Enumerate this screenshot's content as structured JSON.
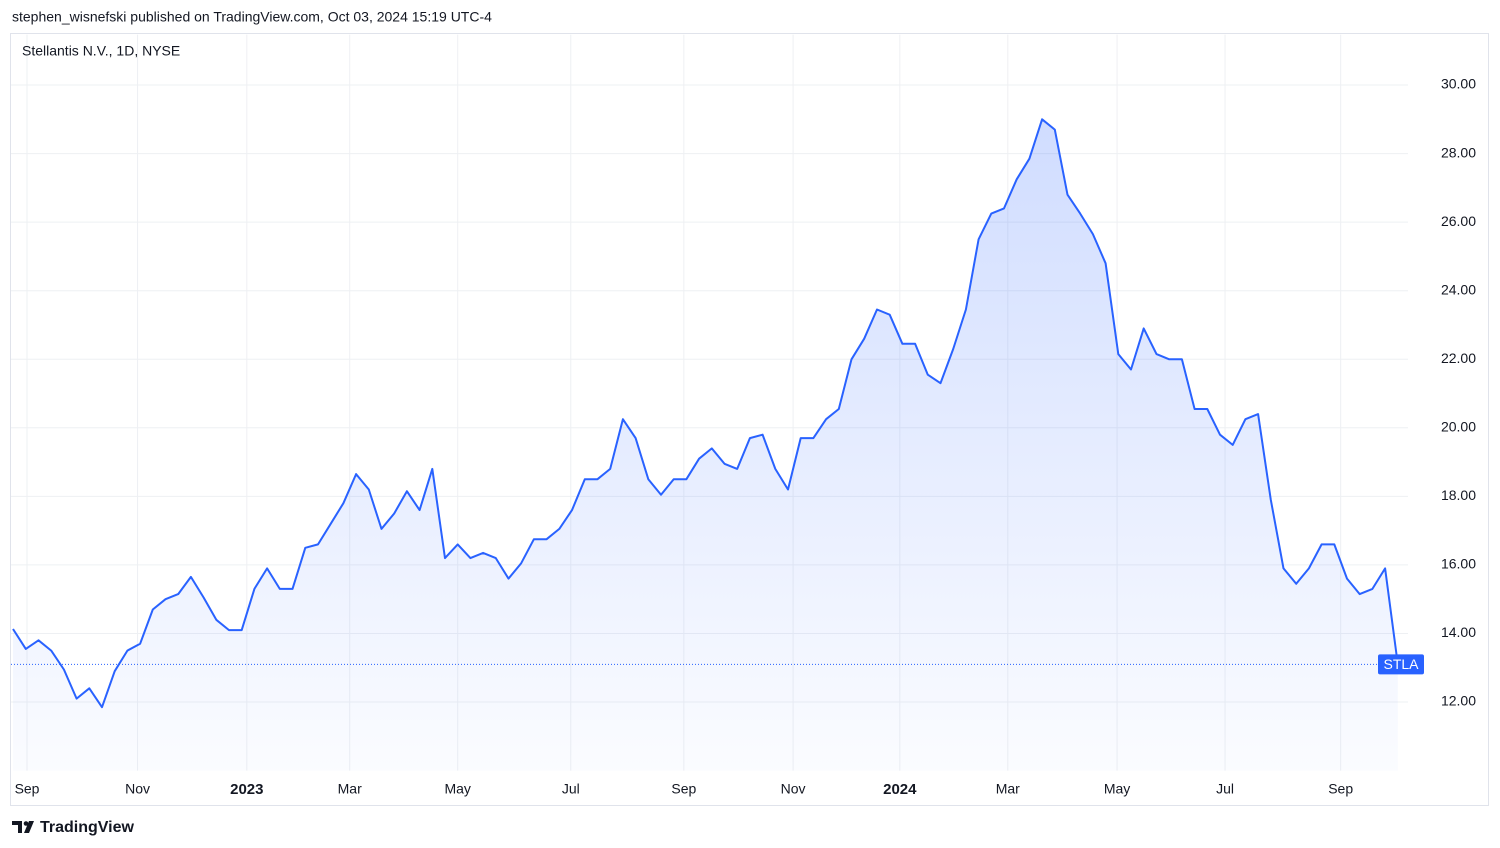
{
  "header": {
    "published": "stephen_wisnefski published on TradingView.com, Oct 03, 2024 15:19 UTC-4",
    "brand": "TradingView"
  },
  "chart_data": {
    "type": "area",
    "title": "Stellantis N.V., 1D, NYSE",
    "series": [
      {
        "name": "STLA",
        "color": "#2962ff",
        "values": [
          14.13,
          13.55,
          13.8,
          13.5,
          12.95,
          12.1,
          12.4,
          11.85,
          12.9,
          13.5,
          13.7,
          14.7,
          15.0,
          15.15,
          15.65,
          15.05,
          14.4,
          14.1,
          14.1,
          15.3,
          15.9,
          15.3,
          15.3,
          16.5,
          16.6,
          17.2,
          17.8,
          18.65,
          18.2,
          17.05,
          17.5,
          18.15,
          17.6,
          18.8,
          16.2,
          16.6,
          16.2,
          16.35,
          16.2,
          15.6,
          16.05,
          16.75,
          16.75,
          17.05,
          17.6,
          18.5,
          18.5,
          18.8,
          20.25,
          19.7,
          18.5,
          18.05,
          18.5,
          18.5,
          19.1,
          19.4,
          18.95,
          18.8,
          19.7,
          19.8,
          18.8,
          18.2,
          19.7,
          19.7,
          20.25,
          20.55,
          22.0,
          22.6,
          23.45,
          23.3,
          22.45,
          22.45,
          21.55,
          21.3,
          22.3,
          23.45,
          25.5,
          26.25,
          26.4,
          27.25,
          27.85,
          29.0,
          28.7,
          26.8,
          26.25,
          25.65,
          24.8,
          22.15,
          21.7,
          22.9,
          22.15,
          22.0,
          22.0,
          20.55,
          20.55,
          19.8,
          19.5,
          20.25,
          20.4,
          17.9,
          15.9,
          15.45,
          15.9,
          16.6,
          16.6,
          15.6,
          15.15,
          15.3,
          15.9,
          13.1
        ]
      }
    ],
    "xlim": [
      -0.24,
      109.8
    ],
    "xticks": [
      {
        "value": 1.1,
        "label": "Sep"
      },
      {
        "value": 9.8,
        "label": "Nov"
      },
      {
        "value": 18.4,
        "label": "2023"
      },
      {
        "value": 26.5,
        "label": "Mar"
      },
      {
        "value": 35.0,
        "label": "May"
      },
      {
        "value": 43.9,
        "label": "Jul"
      },
      {
        "value": 52.8,
        "label": "Sep"
      },
      {
        "value": 61.4,
        "label": "Nov"
      },
      {
        "value": 69.8,
        "label": "2024"
      },
      {
        "value": 78.3,
        "label": "Mar"
      },
      {
        "value": 86.9,
        "label": "May"
      },
      {
        "value": 95.4,
        "label": "Jul"
      },
      {
        "value": 104.5,
        "label": "Sep"
      }
    ],
    "ylim": [
      10,
      31.5
    ],
    "yticks": [
      {
        "value": 12,
        "label": "12.00"
      },
      {
        "value": 14,
        "label": "14.00"
      },
      {
        "value": 16,
        "label": "16.00"
      },
      {
        "value": 18,
        "label": "18.00"
      },
      {
        "value": 20,
        "label": "20.00"
      },
      {
        "value": 22,
        "label": "22.00"
      },
      {
        "value": 24,
        "label": "24.00"
      },
      {
        "value": 26,
        "label": "26.00"
      },
      {
        "value": 28,
        "label": "28.00"
      },
      {
        "value": 30,
        "label": "30.00"
      }
    ],
    "grid": true
  }
}
